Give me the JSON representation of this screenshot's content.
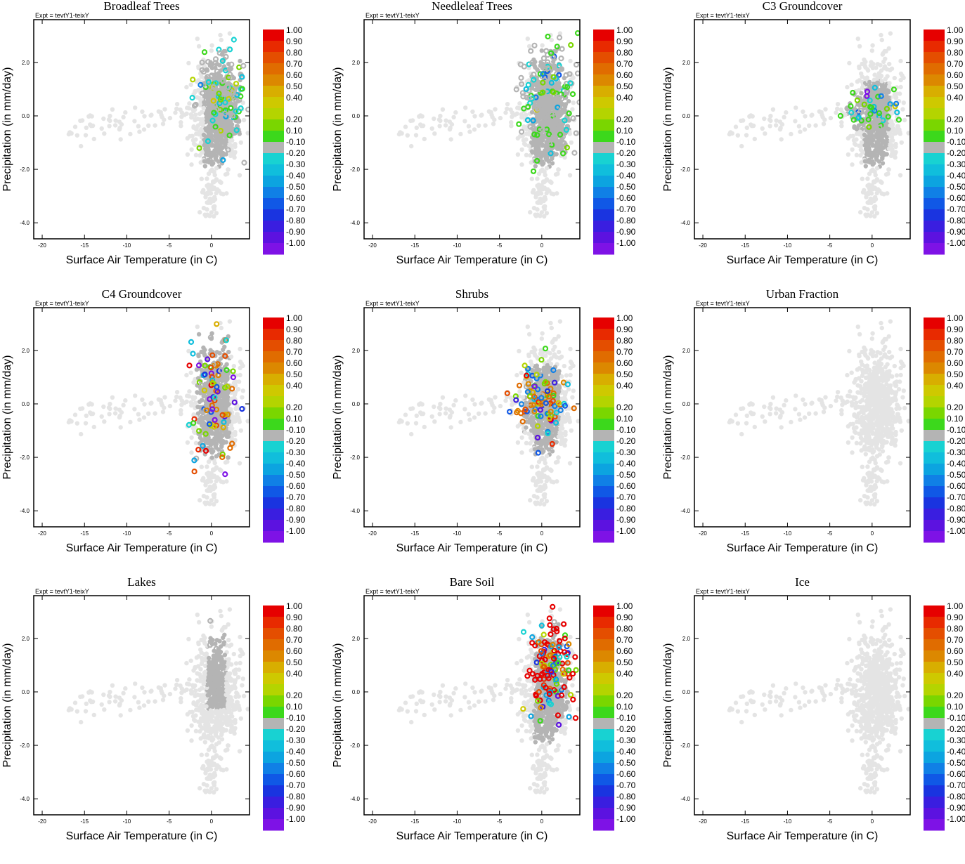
{
  "experiment_label": "Expt = tevtY1-teixY",
  "chart_data": [
    {
      "type": "scatter",
      "title": "Broadleaf Trees",
      "xlabel": "Surface Air Temperature (in C)",
      "ylabel": "Precipitation (in mm/day)",
      "xlim": [
        -21,
        4.5
      ],
      "ylim": [
        -4.6,
        3.6
      ],
      "xticks": [
        "-20",
        "-15",
        "-10",
        "-5",
        "0"
      ],
      "yticks": [
        "-4.0",
        "-2.0",
        "0.0",
        "2.0"
      ],
      "highlight": {
        "center": [
          1.5,
          0.8
        ],
        "spread": [
          1.5,
          0.9
        ],
        "n": 150,
        "dist": [
          0,
          0,
          0,
          0,
          0,
          0,
          1,
          2,
          6,
          10,
          60,
          10,
          5,
          2,
          1,
          1,
          0,
          0,
          0,
          0
        ]
      }
    },
    {
      "type": "scatter",
      "title": "Needleleaf Trees",
      "xlabel": "Surface Air Temperature (in C)",
      "ylabel": "Precipitation (in mm/day)",
      "xlim": [
        -21,
        4.5
      ],
      "ylim": [
        -4.6,
        3.6
      ],
      "xticks": [
        "-20",
        "-15",
        "-10",
        "-5",
        "0"
      ],
      "yticks": [
        "-4.0",
        "-2.0",
        "0.0",
        "2.0"
      ],
      "highlight": {
        "center": [
          1.0,
          0.6
        ],
        "spread": [
          1.6,
          1.1
        ],
        "n": 170,
        "dist": [
          0,
          0,
          0,
          0,
          0,
          0,
          1,
          1,
          3,
          12,
          55,
          8,
          3,
          1,
          1,
          1,
          0,
          0,
          0,
          0
        ]
      }
    },
    {
      "type": "scatter",
      "title": "C3 Groundcover",
      "xlabel": "Surface Air Temperature (in C)",
      "ylabel": "Precipitation (in mm/day)",
      "xlim": [
        -21,
        4.5
      ],
      "ylim": [
        -4.6,
        3.6
      ],
      "xticks": [
        "-20",
        "-15",
        "-10",
        "-5",
        "0"
      ],
      "yticks": [
        "-4.0",
        "-2.0",
        "0.0",
        "2.0"
      ],
      "highlight": {
        "center": [
          -0.5,
          0.2
        ],
        "spread": [
          1.8,
          0.4
        ],
        "n": 50,
        "dist": [
          0,
          0,
          0,
          0,
          0,
          0,
          2,
          1,
          4,
          20,
          25,
          4,
          2,
          2,
          2,
          2,
          0,
          0,
          0,
          1
        ]
      }
    },
    {
      "type": "scatter",
      "title": "C4 Groundcover",
      "xlabel": "Surface Air Temperature (in C)",
      "ylabel": "Precipitation (in mm/day)",
      "xlim": [
        -21,
        4.5
      ],
      "ylim": [
        -4.6,
        3.6
      ],
      "xticks": [
        "-20",
        "-15",
        "-10",
        "-5",
        "0"
      ],
      "yticks": [
        "-4.0",
        "-2.0",
        "0.0",
        "2.0"
      ],
      "highlight": {
        "center": [
          0.2,
          0.3
        ],
        "spread": [
          1.4,
          1.3
        ],
        "n": 85,
        "dist": [
          4,
          4,
          5,
          8,
          8,
          5,
          4,
          3,
          6,
          6,
          6,
          4,
          4,
          3,
          2,
          2,
          2,
          3,
          4,
          5
        ]
      }
    },
    {
      "type": "scatter",
      "title": "Shrubs",
      "xlabel": "Surface Air Temperature (in C)",
      "ylabel": "Precipitation (in mm/day)",
      "xlim": [
        -21,
        4.5
      ],
      "ylim": [
        -4.6,
        3.6
      ],
      "xticks": [
        "-20",
        "-15",
        "-10",
        "-5",
        "0"
      ],
      "yticks": [
        "-4.0",
        "-2.0",
        "0.0",
        "2.0"
      ],
      "highlight": {
        "center": [
          0.0,
          0.2
        ],
        "spread": [
          1.5,
          0.7
        ],
        "n": 100,
        "dist": [
          5,
          4,
          5,
          10,
          12,
          6,
          5,
          4,
          6,
          8,
          8,
          3,
          3,
          2,
          6,
          8,
          6,
          3,
          2,
          2
        ]
      }
    },
    {
      "type": "scatter",
      "title": "Urban Fraction",
      "xlabel": "Surface Air Temperature (in C)",
      "ylabel": "Precipitation (in mm/day)",
      "xlim": [
        -21,
        4.5
      ],
      "ylim": [
        -4.6,
        3.6
      ],
      "xticks": [
        "-20",
        "-15",
        "-10",
        "-5",
        "0"
      ],
      "yticks": [
        "-4.0",
        "-2.0",
        "0.0",
        "2.0"
      ],
      "highlight": {
        "center": [
          0,
          0
        ],
        "spread": [
          1,
          1
        ],
        "n": 0,
        "dist": [
          0,
          0,
          0,
          0,
          0,
          0,
          0,
          0,
          0,
          0,
          1,
          0,
          0,
          0,
          0,
          0,
          0,
          0,
          0,
          0
        ]
      }
    },
    {
      "type": "scatter",
      "title": "Lakes",
      "xlabel": "Surface Air Temperature (in C)",
      "ylabel": "Precipitation (in mm/day)",
      "xlim": [
        -21,
        4.5
      ],
      "ylim": [
        -4.6,
        3.6
      ],
      "xticks": [
        "-20",
        "-15",
        "-10",
        "-5",
        "0"
      ],
      "yticks": [
        "-4.0",
        "-2.0",
        "0.0",
        "2.0"
      ],
      "highlight": {
        "center": [
          0.6,
          0.8
        ],
        "spread": [
          0.8,
          0.8
        ],
        "n": 4,
        "dist": [
          0,
          0,
          0,
          0,
          0,
          0,
          0,
          0,
          0,
          0,
          1,
          0,
          0,
          0,
          0,
          0,
          0,
          0,
          0,
          0
        ]
      }
    },
    {
      "type": "scatter",
      "title": "Bare Soil",
      "xlabel": "Surface Air Temperature (in C)",
      "ylabel": "Precipitation (in mm/day)",
      "xlim": [
        -21,
        4.5
      ],
      "ylim": [
        -4.6,
        3.6
      ],
      "xticks": [
        "-20",
        "-15",
        "-10",
        "-5",
        "0"
      ],
      "yticks": [
        "-4.0",
        "-2.0",
        "0.0",
        "2.0"
      ],
      "highlight": {
        "center": [
          1.2,
          0.8
        ],
        "spread": [
          1.4,
          1.0
        ],
        "n": 140,
        "dist": [
          35,
          6,
          5,
          5,
          4,
          3,
          3,
          2,
          2,
          4,
          8,
          4,
          5,
          8,
          4,
          2,
          2,
          3,
          2,
          2
        ]
      }
    },
    {
      "type": "scatter",
      "title": "Ice",
      "xlabel": "Surface Air Temperature (in C)",
      "ylabel": "Precipitation (in mm/day)",
      "xlim": [
        -21,
        4.5
      ],
      "ylim": [
        -4.6,
        3.6
      ],
      "xticks": [
        "-20",
        "-15",
        "-10",
        "-5",
        "0"
      ],
      "yticks": [
        "-4.0",
        "-2.0",
        "0.0",
        "2.0"
      ],
      "highlight": {
        "center": [
          0,
          0
        ],
        "spread": [
          1,
          1
        ],
        "n": 0,
        "dist": [
          0,
          0,
          0,
          0,
          0,
          0,
          0,
          0,
          0,
          0,
          1,
          0,
          0,
          0,
          0,
          0,
          0,
          0,
          0,
          0
        ]
      }
    }
  ],
  "colorbar": {
    "labels": [
      "1.00",
      "0.90",
      "0.80",
      "0.70",
      "0.60",
      "0.50",
      "0.40",
      "0.20",
      "0.10",
      "-0.10",
      "-0.20",
      "-0.30",
      "-0.40",
      "-0.50",
      "-0.60",
      "-0.70",
      "-0.80",
      "-0.90",
      "-1.00"
    ],
    "colors": [
      "#e60000",
      "#e82a00",
      "#e44e00",
      "#e06c00",
      "#dc8800",
      "#d8ae00",
      "#cec900",
      "#b4d400",
      "#7ad600",
      "#3cd81c",
      "#b4b4b4",
      "#18d2d2",
      "#10bedc",
      "#0ca4e0",
      "#1080e6",
      "#1058e6",
      "#1a34e0",
      "#3a1ee0",
      "#5c12e0",
      "#7e12e6"
    ]
  },
  "background_points": {
    "color": "#e4e4e4",
    "mid_color": "#b4b4b4"
  }
}
